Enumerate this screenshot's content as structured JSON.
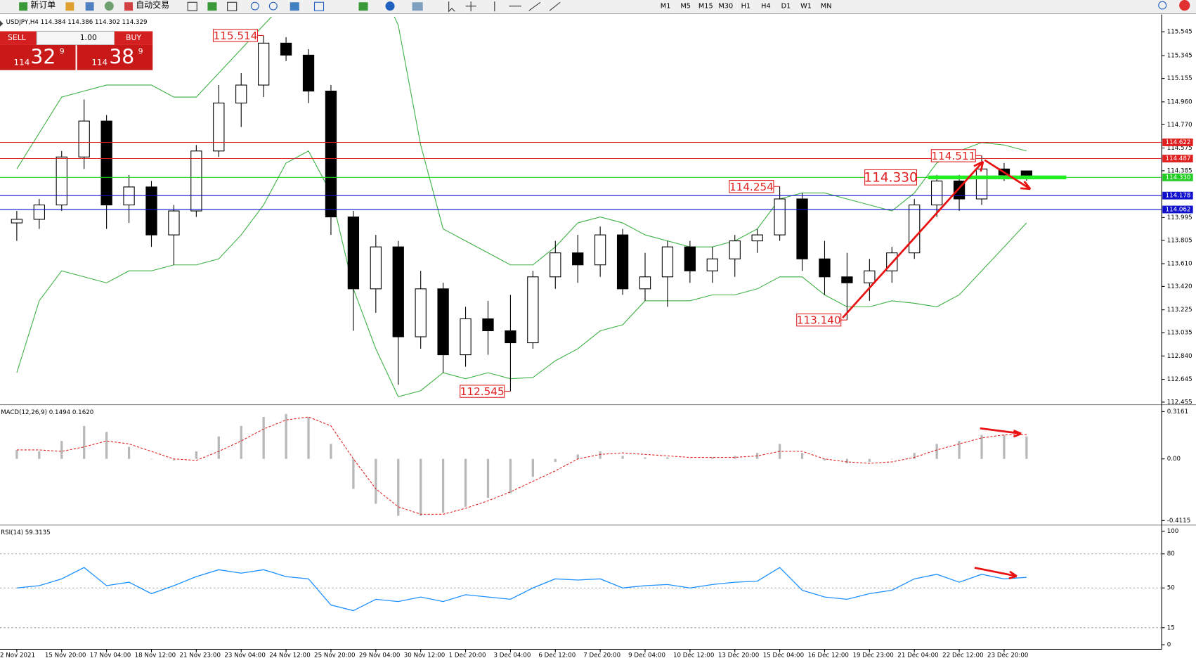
{
  "toolbar": {
    "buttons": [
      "新订单",
      "自动交易"
    ],
    "periods": [
      "M1",
      "M5",
      "M15",
      "M30",
      "H1",
      "H4",
      "D1",
      "W1",
      "MN"
    ]
  },
  "trade_panel": {
    "sell": "SELL",
    "buy": "BUY",
    "lots": "1.00",
    "bid_big": "114",
    "bid_main": "32",
    "bid_small": "9",
    "ask_big": "114",
    "ask_main": "38",
    "ask_small": "9"
  },
  "chart_data": [
    {
      "type": "candlestick",
      "title": "USDJPY,H4 114.384 114.386 114.302 114.329",
      "categories": [
        "2 Nov 2021",
        null,
        "15 Nov 20:00",
        null,
        "17 Nov 04:00",
        null,
        "18 Nov 12:00",
        null,
        "21 Nov 23:00",
        null,
        "23 Nov 04:00",
        null,
        "24 Nov 12:00",
        null,
        "25 Nov 20:00",
        null,
        "29 Nov 04:00",
        null,
        "30 Nov 12:00",
        null,
        "1 Dec 20:00",
        null,
        "3 Dec 04:00",
        null,
        "6 Dec 12:00",
        null,
        "7 Dec 20:00",
        null,
        "9 Dec 04:00",
        null,
        "10 Dec 12:00",
        null,
        "13 Dec 20:00",
        null,
        "15 Dec 04:00",
        null,
        "16 Dec 12:00",
        null,
        "19 Dec 23:00",
        null,
        "21 Dec 04:00",
        null,
        "22 Dec 12:00",
        null,
        "23 Dec 20:00",
        null
      ],
      "open": [
        113.95,
        113.98,
        114.1,
        114.5,
        114.8,
        114.1,
        114.25,
        113.85,
        114.05,
        114.55,
        114.95,
        115.1,
        115.45,
        115.35,
        115.05,
        114.0,
        113.4,
        113.75,
        113.0,
        113.4,
        112.85,
        113.15,
        113.05,
        112.95,
        113.5,
        113.7,
        113.6,
        113.85,
        113.4,
        113.5,
        113.75,
        113.55,
        113.65,
        113.8,
        113.85,
        114.15,
        113.65,
        113.5,
        113.45,
        113.55,
        113.7,
        114.1,
        114.3,
        114.15,
        114.4,
        114.384
      ],
      "high": [
        114.05,
        114.15,
        114.55,
        114.98,
        114.85,
        114.35,
        114.3,
        114.1,
        114.6,
        115.1,
        115.2,
        115.514,
        115.5,
        115.4,
        115.1,
        114.05,
        113.85,
        113.8,
        113.55,
        113.45,
        113.25,
        113.3,
        113.35,
        113.55,
        113.8,
        113.85,
        113.92,
        113.9,
        113.7,
        113.8,
        113.8,
        113.75,
        113.85,
        113.9,
        114.254,
        114.2,
        113.8,
        113.7,
        113.65,
        113.75,
        114.15,
        114.35,
        114.35,
        114.511,
        114.45,
        114.386
      ],
      "low": [
        113.8,
        113.9,
        114.05,
        114.4,
        113.9,
        113.95,
        113.75,
        113.6,
        114.0,
        114.5,
        114.75,
        115.0,
        115.3,
        114.95,
        113.85,
        113.05,
        113.2,
        112.6,
        112.9,
        112.7,
        112.75,
        112.85,
        112.545,
        112.9,
        113.4,
        113.45,
        113.5,
        113.35,
        113.3,
        113.25,
        113.45,
        113.45,
        113.5,
        113.7,
        113.8,
        113.55,
        113.35,
        113.14,
        113.3,
        113.45,
        113.65,
        114.0,
        114.05,
        114.1,
        114.3,
        114.302
      ],
      "close": [
        113.98,
        114.1,
        114.5,
        114.8,
        114.1,
        114.25,
        113.85,
        114.05,
        114.55,
        114.95,
        115.1,
        115.45,
        115.35,
        115.05,
        114.0,
        113.4,
        113.75,
        113.0,
        113.4,
        112.85,
        113.15,
        113.05,
        112.95,
        113.5,
        113.7,
        113.6,
        113.85,
        113.4,
        113.5,
        113.75,
        113.55,
        113.65,
        113.8,
        113.85,
        114.15,
        113.65,
        113.5,
        113.45,
        113.55,
        113.7,
        114.1,
        114.3,
        114.15,
        114.4,
        114.35,
        114.329
      ],
      "bollinger_upper": [
        114.4,
        114.7,
        115.0,
        115.05,
        115.1,
        115.1,
        115.1,
        115.0,
        115.0,
        115.2,
        115.4,
        115.6,
        115.8,
        115.9,
        116.2,
        116.3,
        116.0,
        115.6,
        114.6,
        113.9,
        113.8,
        113.7,
        113.6,
        113.6,
        113.75,
        113.95,
        114.0,
        113.95,
        113.85,
        113.8,
        113.75,
        113.75,
        113.8,
        113.9,
        114.15,
        114.2,
        114.2,
        114.15,
        114.1,
        114.05,
        114.2,
        114.45,
        114.55,
        114.62,
        114.6,
        114.55
      ],
      "bollinger_lower": [
        112.7,
        113.3,
        113.55,
        113.5,
        113.45,
        113.55,
        113.55,
        113.6,
        113.6,
        113.65,
        113.85,
        114.1,
        114.45,
        114.55,
        114.2,
        113.4,
        112.9,
        112.5,
        112.55,
        112.7,
        112.65,
        112.7,
        112.65,
        112.66,
        112.8,
        112.9,
        113.05,
        113.1,
        113.3,
        113.3,
        113.3,
        113.35,
        113.35,
        113.4,
        113.5,
        113.5,
        113.35,
        113.25,
        113.25,
        113.3,
        113.28,
        113.25,
        113.35,
        113.55,
        113.75,
        113.95
      ],
      "band_color": "#3cb043",
      "up_color": "#ffffff",
      "down_color": "#000000",
      "levels": [
        {
          "value": 114.622,
          "color": "#e02020"
        },
        {
          "value": 114.487,
          "color": "#e02020"
        },
        {
          "value": 114.33,
          "label": "114.330",
          "color": "#22cc22"
        },
        {
          "value": 114.178,
          "color": "#1010cc"
        },
        {
          "value": 114.062,
          "color": "#1010cc"
        }
      ],
      "annotations": [
        {
          "value": 115.514
        },
        {
          "value": 112.545
        },
        {
          "value": 114.254
        },
        {
          "value": 113.14,
          "label": "113.140"
        },
        {
          "value": 114.33,
          "label": "114.330"
        },
        {
          "value": 114.511
        }
      ],
      "ylim": [
        112.44,
        115.67
      ],
      "yticks": [
        115.545,
        115.345,
        115.155,
        {
          "value": 114.96,
          "label": "114.960"
        },
        {
          "value": 114.77,
          "label": "114.770"
        },
        114.575,
        114.385,
        113.995,
        113.805,
        {
          "value": 113.61,
          "label": "113.610"
        },
        {
          "value": 113.42,
          "label": "113.420"
        },
        113.225,
        113.035,
        {
          "value": 112.84,
          "label": "112.840"
        },
        112.645,
        112.455
      ]
    },
    {
      "type": "macd",
      "title": "MACD(12,26,9) 0.1494 0.1620",
      "values": [
        0.06,
        0.05,
        0.12,
        0.22,
        0.18,
        0.08,
        0.0,
        -0.01,
        0.05,
        0.15,
        0.22,
        0.28,
        0.3,
        0.28,
        0.1,
        -0.2,
        -0.3,
        -0.38,
        -0.38,
        -0.36,
        -0.32,
        -0.26,
        -0.23,
        -0.12,
        -0.02,
        0.03,
        0.05,
        0.02,
        0.01,
        0.01,
        0.0,
        0.01,
        0.02,
        0.04,
        0.1,
        0.04,
        -0.01,
        -0.03,
        -0.02,
        0.0,
        0.04,
        0.1,
        0.12,
        0.16,
        0.16,
        0.1494
      ],
      "signal": [
        0.06,
        0.06,
        0.05,
        0.08,
        0.12,
        0.1,
        0.05,
        0.0,
        -0.01,
        0.05,
        0.12,
        0.2,
        0.26,
        0.28,
        0.22,
        0.0,
        -0.2,
        -0.32,
        -0.37,
        -0.37,
        -0.33,
        -0.28,
        -0.22,
        -0.15,
        -0.08,
        0.0,
        0.03,
        0.04,
        0.03,
        0.02,
        0.01,
        0.01,
        0.01,
        0.02,
        0.05,
        0.05,
        0.0,
        -0.02,
        -0.03,
        -0.02,
        0.01,
        0.06,
        0.1,
        0.14,
        0.16,
        0.162
      ],
      "color": "#b8b8b8",
      "signal_color": "#e02020",
      "ylim": [
        -0.437,
        0.352
      ],
      "yticks": [
        0.3161,
        {
          "value": 0,
          "label": "0.00"
        },
        -0.4115
      ]
    },
    {
      "type": "line",
      "title": "RSI(14) 59.3135",
      "values": [
        50,
        52,
        58,
        68,
        52,
        55,
        45,
        52,
        60,
        66,
        63,
        66,
        60,
        58,
        35,
        30,
        40,
        38,
        42,
        38,
        44,
        42,
        40,
        50,
        58,
        57,
        58,
        50,
        52,
        53,
        50,
        53,
        55,
        56,
        68,
        48,
        42,
        40,
        45,
        48,
        58,
        62,
        55,
        62,
        58,
        59.3135
      ],
      "color": "#1e90ff",
      "levels": [
        80,
        50,
        15
      ],
      "ylim": [
        -4,
        104
      ],
      "yticks": [
        100,
        80,
        50,
        15,
        0
      ]
    }
  ]
}
